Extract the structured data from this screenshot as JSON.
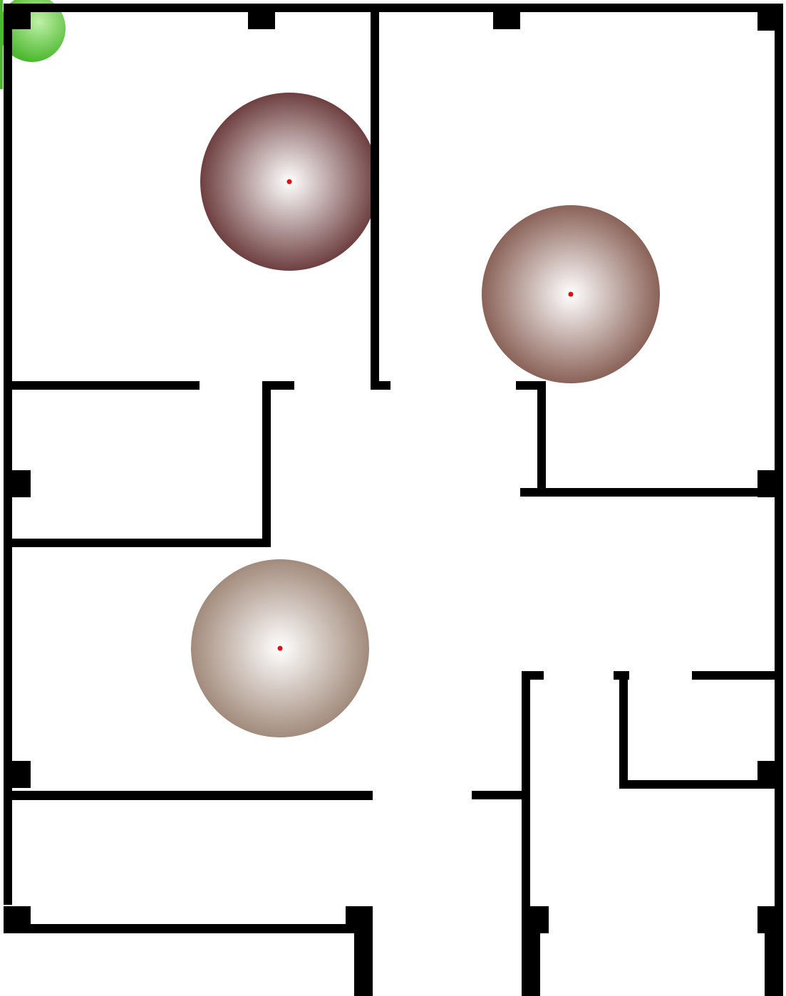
{
  "floorplan": {
    "colors": {
      "background": "#ffffff",
      "wall": "#000000",
      "marker_dot": "#e01010",
      "start_glow": "#5cc23e",
      "zone_inner": "#ffffff",
      "zone_a_outer": "#6e3f40",
      "zone_b_outer": "#8a6258",
      "zone_c_outer": "#a28b7c"
    },
    "zones": [
      {
        "id": "zone-a",
        "color_key": "zone_a_outer"
      },
      {
        "id": "zone-b",
        "color_key": "zone_b_outer"
      },
      {
        "id": "zone-c",
        "color_key": "zone_c_outer"
      }
    ],
    "start_marker": {
      "icon": "green-glow-icon"
    }
  }
}
